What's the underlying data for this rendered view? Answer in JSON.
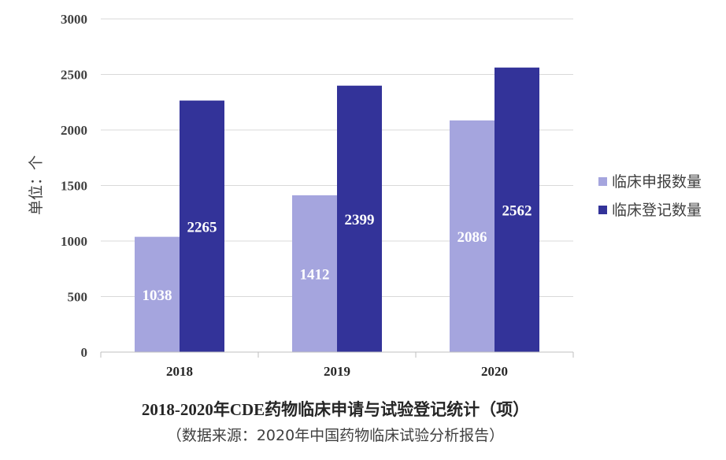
{
  "chart_data": {
    "type": "bar",
    "categories": [
      "2018",
      "2019",
      "2020"
    ],
    "series": [
      {
        "name": "临床申报数量",
        "values": [
          1038,
          1412,
          2086
        ],
        "color": "#a5a5de"
      },
      {
        "name": "临床登记数量",
        "values": [
          2265,
          2399,
          2562
        ],
        "color": "#333399"
      }
    ],
    "title": "2018-2020年CDE药物临床申请与试验登记统计（项）",
    "subtitle": "（数据来源：2020年中国药物临床试验分析报告）",
    "ylabel": "单位：个",
    "xlabel": "",
    "ylim": [
      0,
      3000
    ],
    "yticks": [
      0,
      500,
      1000,
      1500,
      2000,
      2500,
      3000
    ],
    "grid": true,
    "legend_position": "right"
  }
}
